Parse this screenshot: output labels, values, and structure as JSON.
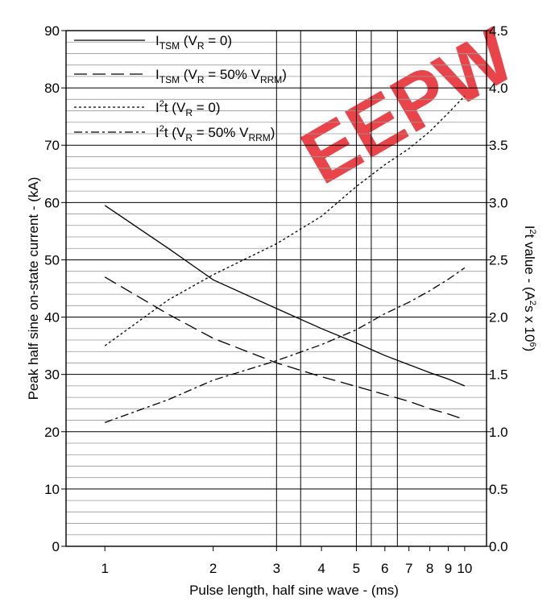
{
  "chart_data": {
    "type": "line",
    "xlabel": "Pulse length, half sine wave - (ms)",
    "ylabel": "Peak half sine on-state current - (kA)",
    "y2label": "I²t value - (A²s x 10⁶)",
    "x_ticks": [
      1,
      2,
      3,
      4,
      5,
      6,
      7,
      8,
      9,
      10
    ],
    "y_ticks": [
      0,
      10,
      20,
      30,
      40,
      50,
      60,
      70,
      80,
      90
    ],
    "y2_ticks": [
      "0.0",
      "0.5",
      "1.0",
      "1.5",
      "2.0",
      "2.5",
      "3.0",
      "3.5",
      "4.0",
      "4.5"
    ],
    "xscale": "log",
    "xlim": [
      0.78,
      11.5
    ],
    "ylim": [
      0,
      90
    ],
    "y2lim": [
      0,
      4.5
    ],
    "grid": true,
    "legend_position": "top-left",
    "series": [
      {
        "legend_main": "I",
        "legend_sub": "TSM",
        "legend_rest": " (V",
        "legend_sub2": "R",
        "legend_tail": " = 0)",
        "axis": "left",
        "dash": "solid",
        "x": [
          1,
          1.5,
          2,
          3,
          4,
          5,
          6,
          7,
          8,
          9,
          10
        ],
        "y": [
          59.5,
          52.0,
          46.5,
          41.5,
          38.0,
          35.5,
          33.3,
          31.7,
          30.3,
          29.2,
          28.0
        ]
      },
      {
        "legend_main": "I",
        "legend_sub": "TSM",
        "legend_rest": " (V",
        "legend_sub2": "R",
        "legend_tail": " = 50% V",
        "legend_sub3": "RRM",
        "legend_end": ")",
        "axis": "left",
        "dash": "long-dash",
        "x": [
          1,
          1.5,
          2,
          3,
          4,
          5,
          6,
          7,
          8,
          9,
          10
        ],
        "y": [
          47.0,
          40.5,
          36.3,
          32.0,
          29.6,
          27.9,
          26.5,
          25.3,
          24.0,
          23.1,
          22.1
        ]
      },
      {
        "legend_main": "I",
        "legend_sup": "2",
        "legend_rest": "t (V",
        "legend_sub2": "R",
        "legend_tail": " = 0)",
        "axis": "right",
        "dash": "dotted",
        "x": [
          1,
          1.5,
          2,
          3,
          4,
          5,
          6,
          7,
          8,
          9,
          10
        ],
        "y": [
          1.75,
          2.15,
          2.37,
          2.64,
          2.88,
          3.14,
          3.33,
          3.47,
          3.62,
          3.78,
          3.93
        ]
      },
      {
        "legend_main": "I",
        "legend_sup": "2",
        "legend_rest": "t (V",
        "legend_sub2": "R",
        "legend_tail": " = 50% V",
        "legend_sub3": "RRM",
        "legend_end": ")",
        "axis": "right",
        "dash": "dash-dot",
        "x": [
          1,
          1.5,
          2,
          3,
          4,
          5,
          6,
          7,
          8,
          9,
          10
        ],
        "y": [
          1.08,
          1.28,
          1.45,
          1.62,
          1.76,
          1.89,
          2.03,
          2.13,
          2.23,
          2.33,
          2.43
        ]
      }
    ]
  },
  "watermark": {
    "text": "EEPW",
    "color": "#e8353a"
  }
}
